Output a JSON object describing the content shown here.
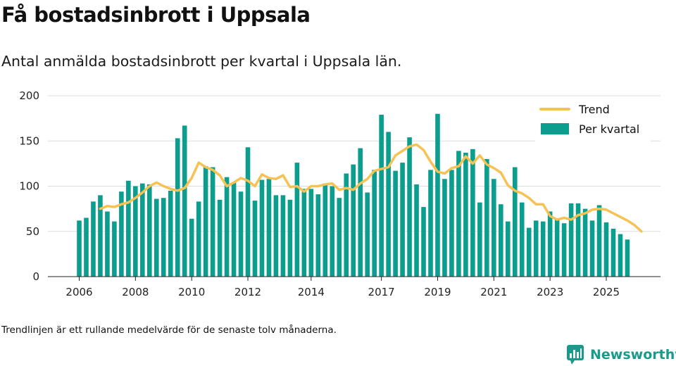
{
  "title": "Få bostadsinbrott i Uppsala",
  "subtitle": "Antal anmälda bostadsinbrott per kvartal i Uppsala län.",
  "footnote": "Trendlinjen är ett rullande medelvärde för de senaste tolv månaderna.",
  "brand": {
    "name": "Newsworthy",
    "icon": "newsworthy-logo-icon"
  },
  "colors": {
    "bar": "#0b9e8f",
    "trend": "#f5c253",
    "grid": "#dddddd"
  },
  "chart_data": {
    "type": "bar",
    "title": "Antal anmälda bostadsinbrott per kvartal i Uppsala län.",
    "xlabel": "",
    "ylabel": "",
    "ylim": [
      0,
      200
    ],
    "yticks": [
      0,
      50,
      100,
      150,
      200
    ],
    "xticks": [
      "2006",
      "2008",
      "2010",
      "2012",
      "2014",
      "2017",
      "2019",
      "2021",
      "2023",
      "2025"
    ],
    "xtick_index": [
      0,
      8,
      16,
      24,
      33,
      43,
      51,
      59,
      67,
      75
    ],
    "legend": {
      "position": "top-right",
      "entries": [
        "Trend",
        "Per kvartal"
      ]
    },
    "series": [
      {
        "name": "Per kvartal",
        "type": "bar",
        "values": [
          62,
          65,
          83,
          90,
          72,
          61,
          94,
          106,
          100,
          103,
          102,
          86,
          87,
          95,
          153,
          167,
          64,
          83,
          122,
          121,
          85,
          110,
          104,
          94,
          143,
          84,
          107,
          108,
          90,
          90,
          85,
          126,
          97,
          97,
          91,
          103,
          100,
          87,
          114,
          124,
          142,
          93,
          118,
          179,
          160,
          117,
          126,
          154,
          102,
          77,
          118,
          180,
          108,
          118,
          139,
          137,
          141,
          82,
          130,
          108,
          80,
          61,
          121,
          82,
          54,
          62,
          61,
          72,
          63,
          59,
          81,
          81,
          75,
          62,
          79,
          60,
          53,
          47,
          41
        ]
      },
      {
        "name": "Trend",
        "type": "line",
        "start_index": 3,
        "values": [
          75,
          78,
          77,
          80,
          82,
          87,
          93,
          100,
          104,
          100,
          97,
          95,
          98,
          109,
          126,
          121,
          118,
          112,
          100,
          104,
          109,
          106,
          100,
          113,
          109,
          108,
          112,
          99,
          100,
          94,
          100,
          100,
          102,
          103,
          96,
          98,
          96,
          103,
          108,
          117,
          119,
          121,
          134,
          139,
          144,
          146,
          140,
          127,
          116,
          114,
          120,
          122,
          133,
          125,
          134,
          124,
          120,
          115,
          101,
          95,
          92,
          87,
          80,
          80,
          67,
          63,
          65,
          63,
          68,
          70,
          74,
          75,
          74,
          70,
          66,
          62,
          57,
          50
        ]
      }
    ]
  }
}
